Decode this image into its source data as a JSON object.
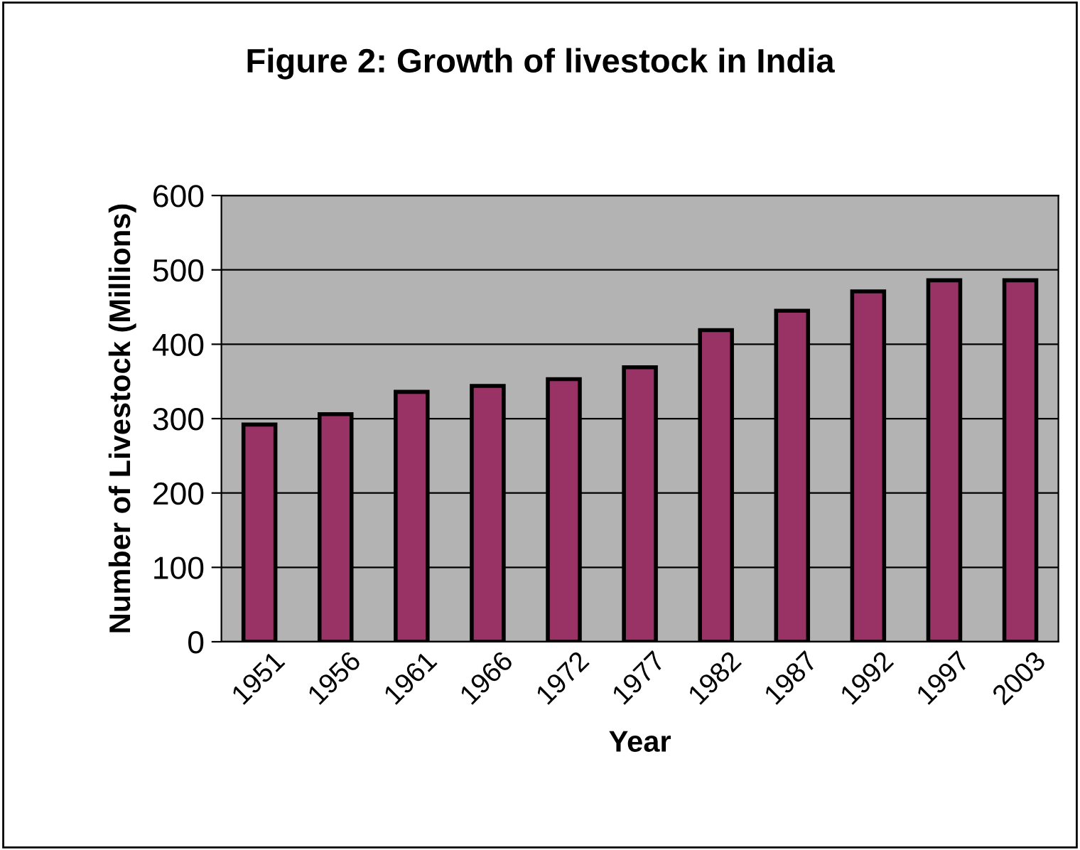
{
  "chart_data": {
    "type": "bar",
    "title": "Figure 2: Growth of livestock in India",
    "xlabel": "Year",
    "ylabel": "Number of Livestock (Millions)",
    "categories": [
      "1951",
      "1956",
      "1961",
      "1966",
      "1972",
      "1977",
      "1982",
      "1987",
      "1992",
      "1997",
      "2003"
    ],
    "values": [
      292,
      306,
      336,
      344,
      353,
      369,
      419,
      445,
      471,
      486,
      486
    ],
    "color": "#993366",
    "ylim": [
      0,
      600
    ],
    "yticks": [
      0,
      100,
      200,
      300,
      400,
      500,
      600
    ],
    "grid": "y",
    "legend": false
  }
}
